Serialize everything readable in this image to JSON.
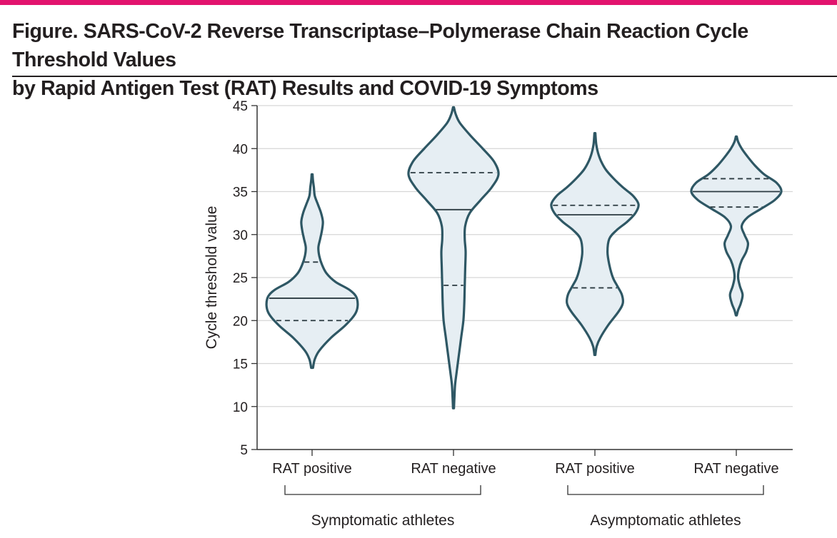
{
  "figure": {
    "title_line1": "Figure. SARS-CoV-2 Reverse Transcriptase–Polymerase Chain Reaction Cycle Threshold Values",
    "title_line2": "by Rapid Antigen Test (RAT) Results and COVID-19 Symptoms"
  },
  "colors": {
    "accent": "#e2136e",
    "violin_fill": "#e6eef3",
    "violin_stroke": "#2e5764",
    "median_line": "#2b3a40",
    "grid": "#d6d6d6",
    "axis": "#333333"
  },
  "chart_data": {
    "type": "violin",
    "title": "Figure. SARS-CoV-2 Reverse Transcriptase–Polymerase Chain Reaction Cycle Threshold Values by Rapid Antigen Test (RAT) Results and COVID-19 Symptoms",
    "ylabel": "Cycle threshold value",
    "xlabel": "",
    "ylim": [
      5,
      45
    ],
    "yticks": [
      "5",
      "10",
      "15",
      "20",
      "25",
      "30",
      "35",
      "40",
      "45"
    ],
    "grid": true,
    "categories": [
      "RAT positive",
      "RAT negative",
      "RAT positive",
      "RAT negative"
    ],
    "groups": [
      {
        "label": "Symptomatic athletes",
        "categories": [
          0,
          1
        ]
      },
      {
        "label": "Asymptomatic athletes",
        "categories": [
          2,
          3
        ]
      }
    ],
    "series": [
      {
        "group": "Symptomatic athletes",
        "name": "RAT positive",
        "min": 14.5,
        "max": 37.0,
        "q1": 20.0,
        "median": 22.6,
        "q3": 26.8,
        "density": [
          [
            14.5,
            0.02
          ],
          [
            15.5,
            0.06
          ],
          [
            16.5,
            0.16
          ],
          [
            18,
            0.42
          ],
          [
            19.5,
            0.75
          ],
          [
            21,
            0.98
          ],
          [
            22.5,
            1.0
          ],
          [
            23.5,
            0.85
          ],
          [
            24.5,
            0.52
          ],
          [
            25.5,
            0.32
          ],
          [
            26.5,
            0.22
          ],
          [
            27.5,
            0.16
          ],
          [
            28.5,
            0.14
          ],
          [
            29.5,
            0.18
          ],
          [
            30.5,
            0.22
          ],
          [
            31.5,
            0.24
          ],
          [
            32.5,
            0.2
          ],
          [
            33.5,
            0.13
          ],
          [
            34.5,
            0.06
          ],
          [
            35.5,
            0.04
          ],
          [
            36.3,
            0.02
          ],
          [
            37,
            0.01
          ]
        ]
      },
      {
        "group": "Symptomatic athletes",
        "name": "RAT negative",
        "min": 9.8,
        "max": 44.8,
        "q1": 24.1,
        "median": 32.9,
        "q3": 37.2,
        "density": [
          [
            9.8,
            0.01
          ],
          [
            11,
            0.02
          ],
          [
            12.5,
            0.035
          ],
          [
            14,
            0.07
          ],
          [
            16,
            0.12
          ],
          [
            18,
            0.17
          ],
          [
            20,
            0.22
          ],
          [
            22,
            0.24
          ],
          [
            24,
            0.25
          ],
          [
            26,
            0.26
          ],
          [
            28,
            0.27
          ],
          [
            29.5,
            0.25
          ],
          [
            31,
            0.26
          ],
          [
            32.5,
            0.36
          ],
          [
            34,
            0.6
          ],
          [
            35.5,
            0.85
          ],
          [
            37,
            1.0
          ],
          [
            38.5,
            0.9
          ],
          [
            40,
            0.65
          ],
          [
            41.5,
            0.38
          ],
          [
            43,
            0.14
          ],
          [
            44,
            0.05
          ],
          [
            44.8,
            0.01
          ]
        ]
      },
      {
        "group": "Asymptomatic athletes",
        "name": "RAT positive",
        "min": 16.0,
        "max": 41.8,
        "q1": 23.8,
        "median": 32.3,
        "q3": 33.4,
        "density": [
          [
            16,
            0.01
          ],
          [
            17,
            0.04
          ],
          [
            18,
            0.12
          ],
          [
            19.5,
            0.3
          ],
          [
            21,
            0.52
          ],
          [
            22,
            0.62
          ],
          [
            23,
            0.6
          ],
          [
            24,
            0.5
          ],
          [
            25,
            0.4
          ],
          [
            26.5,
            0.32
          ],
          [
            28,
            0.28
          ],
          [
            29.5,
            0.32
          ],
          [
            30.5,
            0.48
          ],
          [
            31.5,
            0.72
          ],
          [
            32.5,
            0.9
          ],
          [
            33.5,
            0.97
          ],
          [
            34.5,
            0.85
          ],
          [
            35.5,
            0.62
          ],
          [
            36.5,
            0.42
          ],
          [
            37.5,
            0.25
          ],
          [
            38.5,
            0.14
          ],
          [
            39.5,
            0.07
          ],
          [
            40.5,
            0.03
          ],
          [
            41.8,
            0.01
          ]
        ]
      },
      {
        "group": "Asymptomatic athletes",
        "name": "RAT negative",
        "min": 20.6,
        "max": 41.4,
        "q1": 33.2,
        "median": 35.0,
        "q3": 36.5,
        "density": [
          [
            20.6,
            0.01
          ],
          [
            21.2,
            0.04
          ],
          [
            22,
            0.1
          ],
          [
            23,
            0.14
          ],
          [
            24,
            0.08
          ],
          [
            25,
            0.04
          ],
          [
            26,
            0.06
          ],
          [
            27,
            0.12
          ],
          [
            28,
            0.22
          ],
          [
            29,
            0.26
          ],
          [
            30,
            0.18
          ],
          [
            31,
            0.12
          ],
          [
            32,
            0.25
          ],
          [
            33,
            0.55
          ],
          [
            34,
            0.85
          ],
          [
            35,
            1.0
          ],
          [
            36,
            0.9
          ],
          [
            37,
            0.62
          ],
          [
            38,
            0.42
          ],
          [
            39,
            0.26
          ],
          [
            40,
            0.12
          ],
          [
            40.8,
            0.04
          ],
          [
            41.4,
            0.01
          ]
        ]
      }
    ]
  }
}
